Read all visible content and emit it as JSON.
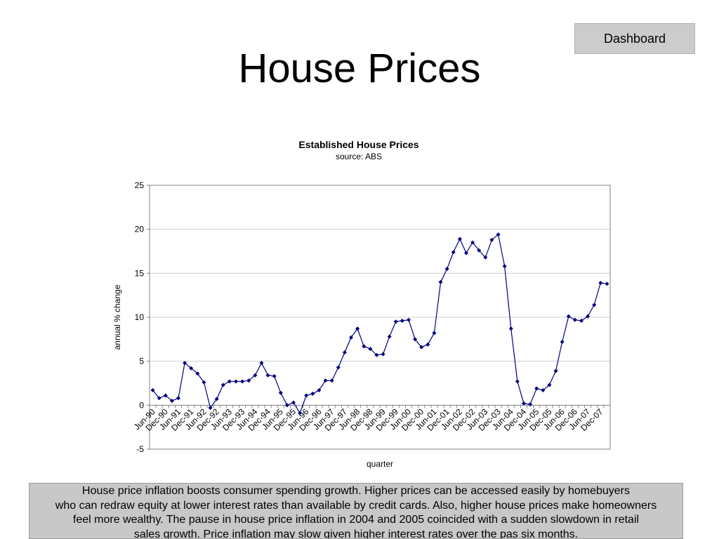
{
  "header": {
    "title": "House Prices",
    "dashboard_label": "Dashboard"
  },
  "chart_data": {
    "type": "line",
    "title": "Established House Prices",
    "subtitle": "source: ABS",
    "xlabel": "quarter",
    "ylabel": "annual % change",
    "ylim": [
      -5,
      25
    ],
    "yticks": [
      -5,
      0,
      5,
      10,
      15,
      20,
      25
    ],
    "grid": true,
    "legend": "none",
    "line_color": "#000080",
    "x": [
      "Jun-90",
      "Sep-90",
      "Dec-90",
      "Mar-91",
      "Jun-91",
      "Sep-91",
      "Dec-91",
      "Mar-92",
      "Jun-92",
      "Sep-92",
      "Dec-92",
      "Mar-93",
      "Jun-93",
      "Sep-93",
      "Dec-93",
      "Mar-94",
      "Jun-94",
      "Sep-94",
      "Dec-94",
      "Mar-95",
      "Jun-95",
      "Sep-95",
      "Dec-95",
      "Mar-96",
      "Jun-96",
      "Sep-96",
      "Dec-96",
      "Mar-97",
      "Jun-97",
      "Sep-97",
      "Dec-97",
      "Mar-98",
      "Jun-98",
      "Sep-98",
      "Dec-98",
      "Mar-99",
      "Jun-99",
      "Sep-99",
      "Dec-99",
      "Mar-00",
      "Jun-00",
      "Sep-00",
      "Dec-00",
      "Mar-01",
      "Jun-01",
      "Sep-01",
      "Dec-01",
      "Mar-02",
      "Jun-02",
      "Sep-02",
      "Dec-02",
      "Mar-03",
      "Jun-03",
      "Sep-03",
      "Dec-03",
      "Mar-04",
      "Jun-04",
      "Sep-04",
      "Dec-04",
      "Mar-05",
      "Jun-05",
      "Sep-05",
      "Dec-05",
      "Mar-06",
      "Jun-06",
      "Sep-06",
      "Dec-06",
      "Mar-07",
      "Jun-07",
      "Sep-07",
      "Dec-07",
      "Mar-08"
    ],
    "x_tick_labels": [
      "Jun-90",
      "Dec-90",
      "Jun-91",
      "Dec-91",
      "Jun-92",
      "Dec-92",
      "Jun-93",
      "Dec-93",
      "Jun-94",
      "Dec-94",
      "Jun-95",
      "Dec-95",
      "Jun-96",
      "Dec-96",
      "Jun-97",
      "Dec-97",
      "Jun-98",
      "Dec-98",
      "Jun-99",
      "Dec-99",
      "Jun-00",
      "Dec-00",
      "Jun-01",
      "Dec-01",
      "Jun-02",
      "Dec-02",
      "Jun-03",
      "Dec-03",
      "Jun-04",
      "Dec-04",
      "Jun-05",
      "Dec-05",
      "Jun-06",
      "Dec-06",
      "Jun-07",
      "Dec-07"
    ],
    "series": [
      {
        "values": [
          1.7,
          0.8,
          1.1,
          0.5,
          0.8,
          4.8,
          4.2,
          3.6,
          2.6,
          -0.3,
          0.7,
          2.3,
          2.7,
          2.7,
          2.7,
          2.8,
          3.4,
          4.8,
          3.4,
          3.3,
          1.4,
          0.0,
          0.3,
          -0.9,
          1.1,
          1.3,
          1.7,
          2.8,
          2.8,
          4.3,
          6.0,
          7.7,
          8.7,
          6.7,
          6.4,
          5.7,
          5.8,
          7.8,
          9.5,
          9.6,
          9.7,
          7.5,
          6.6,
          6.9,
          8.2,
          14.0,
          15.5,
          17.4,
          18.9,
          17.3,
          18.5,
          17.6,
          16.8,
          18.8,
          19.4,
          15.8,
          8.7,
          2.7,
          0.2,
          0.1,
          1.9,
          1.7,
          2.3,
          3.9,
          7.2,
          10.1,
          9.7,
          9.6,
          10.1,
          11.4,
          13.9,
          13.8
        ]
      }
    ]
  },
  "caption": {
    "lines": [
      "House price inflation boosts consumer spending growth.  Higher prices can be accessed easily by homebuyers",
      "who can redraw equity at lower interest rates than available by credit cards.  Also, higher house prices make homeowners",
      "feel more wealthy.  The pause in house price inflation in 2004 and 2005 coincided with a sudden slowdown in retail",
      "sales growth.  Price inflation may slow given higher interest rates over the pas six months."
    ]
  }
}
